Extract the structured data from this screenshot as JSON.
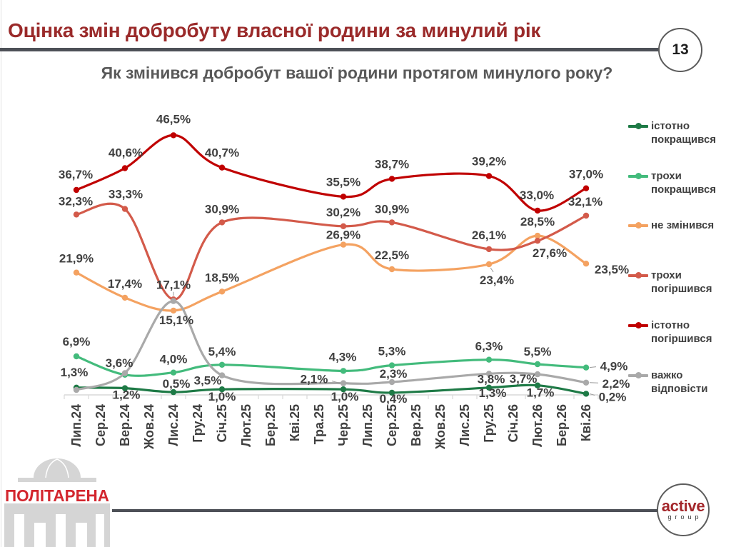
{
  "page": {
    "title": "Оцінка змін добробуту власної родини за минулий рік",
    "page_number": "13",
    "subtitle": "Як змінився добробут вашої родини протягом минулого року?"
  },
  "logos": {
    "left_brand": "ПОЛІТАРЕНА",
    "right_brand_top": "active",
    "right_brand_bottom": "group"
  },
  "colors": {
    "title": "#9a2a2a",
    "rule": "#4d5057",
    "label_text": "#404040"
  },
  "chart_data": {
    "type": "line",
    "title": "Як змінився добробут вашої родини протягом минулого року?",
    "xlabel": "",
    "ylabel": "",
    "ylim": [
      0,
      50
    ],
    "grid": false,
    "legend": "right",
    "smoothed": true,
    "categories": [
      "Лип.24",
      "Сер.24",
      "Вер.24",
      "Жов.24",
      "Лис.24",
      "Гру.24",
      "Січ.25",
      "Лют.25",
      "Бер.25",
      "Кві.25",
      "Тра.25",
      "Чер.25",
      "Лип.25",
      "Сер.25",
      "Вер.25",
      "Жов.25",
      "Лис.25",
      "Гру.25",
      "Січ.26",
      "Лют.26",
      "Бер.26",
      "Кві.26"
    ],
    "x": [
      "Лип.24",
      "Вер.24",
      "Лис.24",
      "Січ.25",
      "Чер.25",
      "Сер.25",
      "Гру.25",
      "Лют.26",
      "Кві.26"
    ],
    "series": [
      {
        "name": "істотно покращився",
        "color": "#1e7a46",
        "values": [
          1.3,
          1.2,
          0.5,
          1.0,
          1.0,
          0.4,
          1.3,
          1.7,
          0.2
        ],
        "labels": [
          "1,3%",
          "1,2%",
          "0,5%",
          "1,0%",
          "1,0%",
          "0,4%",
          "1,3%",
          "1,7%",
          "0,2%"
        ]
      },
      {
        "name": "трохи покращився",
        "color": "#43bb7c",
        "values": [
          6.9,
          3.6,
          4.0,
          5.4,
          4.3,
          5.3,
          6.3,
          5.5,
          4.9
        ],
        "labels": [
          "6,9%",
          "3,6%",
          "4,0%",
          "5,4%",
          "4,3%",
          "5,3%",
          "6,3%",
          "5,5%",
          "4,9%"
        ]
      },
      {
        "name": "не змінився",
        "color": "#f4a261",
        "values": [
          21.9,
          17.4,
          15.1,
          18.5,
          26.9,
          22.5,
          23.4,
          28.5,
          23.5
        ],
        "labels": [
          "21,9%",
          "17,4%",
          "15,1%",
          "18,5%",
          "26,9%",
          "22,5%",
          "23,4%",
          "28,5%",
          "23,5%"
        ]
      },
      {
        "name": "трохи погіршився",
        "color": "#d35a4a",
        "values": [
          32.3,
          33.3,
          17.1,
          30.9,
          30.2,
          30.9,
          26.1,
          27.6,
          32.1
        ],
        "labels": [
          "32,3%",
          "33,3%",
          "17,1%",
          "30,9%",
          "30,2%",
          "30,9%",
          "26,1%",
          "27,6%",
          "32,1%"
        ]
      },
      {
        "name": "істотно погіршився",
        "color": "#c00000",
        "values": [
          36.7,
          40.6,
          46.5,
          40.7,
          35.5,
          38.7,
          39.2,
          33.0,
          37.0
        ],
        "labels": [
          "36,7%",
          "40,6%",
          "46,5%",
          "40,7%",
          "35,5%",
          "38,7%",
          "39,2%",
          "33,0%",
          "37,0%"
        ]
      },
      {
        "name": "важко відповісти",
        "color": "#a9a9a9",
        "values": [
          0.9,
          3.9,
          16.8,
          3.5,
          2.1,
          2.3,
          3.8,
          3.7,
          2.2
        ],
        "labels": [
          null,
          null,
          null,
          "3,5%",
          "2,1%",
          "2,3%",
          "3,8%",
          "3,7%",
          "2,2%"
        ]
      }
    ]
  }
}
